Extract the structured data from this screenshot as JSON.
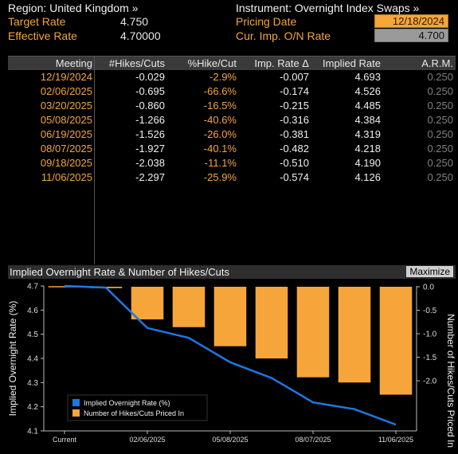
{
  "header": {
    "region": "Region: United Kingdom »",
    "instrument": "Instrument: Overnight Index Swaps »",
    "target_rate_label": "Target Rate",
    "target_rate_value": "4.750",
    "effective_rate_label": "Effective Rate",
    "effective_rate_value": "4.70000",
    "pricing_date_label": "Pricing Date",
    "pricing_date_value": "12/18/2024",
    "cur_imp_label": "Cur. Imp. O/N Rate",
    "cur_imp_value": "4.700"
  },
  "table": {
    "columns": [
      "Meeting",
      "#Hikes/Cuts",
      "%Hike/Cut",
      "Imp. Rate Δ",
      "Implied Rate",
      "A.R.M."
    ],
    "rows": [
      {
        "meeting": "12/19/2024",
        "hikes": "-0.029",
        "pct": "-2.9%",
        "delta": "-0.007",
        "implied": "4.693",
        "arm": "0.250"
      },
      {
        "meeting": "02/06/2025",
        "hikes": "-0.695",
        "pct": "-66.6%",
        "delta": "-0.174",
        "implied": "4.526",
        "arm": "0.250"
      },
      {
        "meeting": "03/20/2025",
        "hikes": "-0.860",
        "pct": "-16.5%",
        "delta": "-0.215",
        "implied": "4.485",
        "arm": "0.250"
      },
      {
        "meeting": "05/08/2025",
        "hikes": "-1.266",
        "pct": "-40.6%",
        "delta": "-0.316",
        "implied": "4.384",
        "arm": "0.250"
      },
      {
        "meeting": "06/19/2025",
        "hikes": "-1.526",
        "pct": "-26.0%",
        "delta": "-0.381",
        "implied": "4.319",
        "arm": "0.250"
      },
      {
        "meeting": "08/07/2025",
        "hikes": "-1.927",
        "pct": "-40.1%",
        "delta": "-0.482",
        "implied": "4.218",
        "arm": "0.250"
      },
      {
        "meeting": "09/18/2025",
        "hikes": "-2.038",
        "pct": "-11.1%",
        "delta": "-0.510",
        "implied": "4.190",
        "arm": "0.250"
      },
      {
        "meeting": "11/06/2025",
        "hikes": "-2.297",
        "pct": "-25.9%",
        "delta": "-0.574",
        "implied": "4.126",
        "arm": "0.250"
      }
    ]
  },
  "chart_panel": {
    "title": "Implied Overnight Rate & Number of Hikes/Cuts",
    "maximize_label": "Maximize"
  },
  "chart_data": {
    "type": "bar",
    "categories": [
      "Current",
      "12/19/2024",
      "02/06/2025",
      "03/20/2025",
      "05/08/2025",
      "06/19/2025",
      "08/07/2025",
      "09/18/2025",
      "11/06/2025"
    ],
    "x_tick_labels": [
      "Current",
      "02/06/2025",
      "05/08/2025",
      "08/07/2025",
      "11/06/2025"
    ],
    "series": [
      {
        "name": "Implied Overnight Rate (%)",
        "type": "line",
        "axis": "left",
        "color": "#1e78e6",
        "values": [
          4.7,
          4.693,
          4.526,
          4.485,
          4.384,
          4.319,
          4.218,
          4.19,
          4.126
        ]
      },
      {
        "name": "Number of Hikes/Cuts Priced In",
        "type": "bar",
        "axis": "right",
        "color": "#f5a53a",
        "values": [
          0,
          -0.029,
          -0.695,
          -0.86,
          -1.266,
          -1.526,
          -1.927,
          -2.038,
          -2.297
        ]
      }
    ],
    "ylabel_left": "Implied Overnight Rate (%)",
    "ylabel_right": "Number of Hikes/Cuts Priced In",
    "ylim_left": [
      4.1,
      4.7
    ],
    "ylim_right": [
      -2.3,
      0
    ],
    "yticks_left": [
      "4.7",
      "4.6",
      "4.5",
      "4.4",
      "4.3",
      "4.2",
      "4.1"
    ],
    "yticks_right": [
      "0.0",
      "-0.5",
      "-1.0",
      "-1.5",
      "-2.0"
    ],
    "legend_position": "bottom-left",
    "grid": false
  },
  "colors": {
    "orange": "#f5a53a",
    "blue": "#1e78e6",
    "background": "#000000"
  }
}
